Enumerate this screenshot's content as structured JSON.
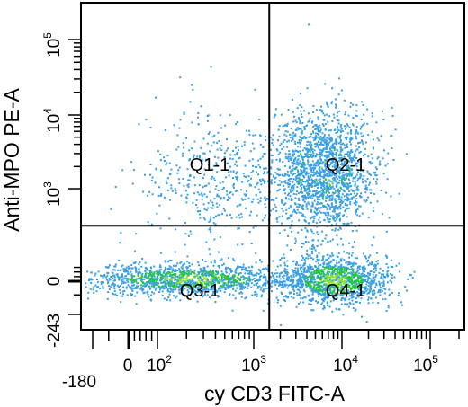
{
  "chart_data": {
    "type": "scatter",
    "subtype": "flow-cytometry-dot-plot",
    "xlabel": "cy CD3 FITC-A",
    "ylabel": "Anti-MPO PE-A",
    "xscale": "biexponential",
    "yscale": "biexponential",
    "xlim": [
      -180,
      200000
    ],
    "ylim": [
      -243,
      180000
    ],
    "x_ticks": [
      {
        "label": "-180",
        "value": -180
      },
      {
        "label": "0",
        "value": 0
      },
      {
        "label": "10",
        "sup": "2",
        "value": 100
      },
      {
        "label": "10",
        "sup": "3",
        "value": 1000
      },
      {
        "label": "10",
        "sup": "4",
        "value": 10000
      },
      {
        "label": "10",
        "sup": "5",
        "value": 100000
      }
    ],
    "y_ticks": [
      {
        "label": "-243",
        "value": -243
      },
      {
        "label": "0",
        "value": 0
      },
      {
        "label": "10",
        "sup": "3",
        "value": 1000
      },
      {
        "label": "10",
        "sup": "4",
        "value": 10000
      },
      {
        "label": "10",
        "sup": "5",
        "value": 100000
      }
    ],
    "gate": {
      "x": 1500,
      "y": 600
    },
    "quadrants": [
      {
        "name": "Q1-1",
        "position": "upper-left"
      },
      {
        "name": "Q2-1",
        "position": "upper-right"
      },
      {
        "name": "Q3-1",
        "position": "lower-left"
      },
      {
        "name": "Q4-1",
        "position": "lower-right"
      }
    ],
    "populations": [
      {
        "quadrant": "Q3-1",
        "x_center": 200,
        "y_center": 0,
        "relative_density": "high"
      },
      {
        "quadrant": "Q4-1",
        "x_center": 8000,
        "y_center": 0,
        "relative_density": "high"
      },
      {
        "quadrant": "Q2-1",
        "x_center": 6000,
        "y_center": 1500,
        "relative_density": "medium"
      },
      {
        "quadrant": "Q1-1",
        "x_center": 500,
        "y_center": 1500,
        "relative_density": "low"
      }
    ],
    "colors": {
      "sparse": "#3aa0e6",
      "dense": "#22cc22",
      "densest": "#8ee62a",
      "lines": "#000000"
    },
    "grid": false,
    "legend": "none"
  }
}
